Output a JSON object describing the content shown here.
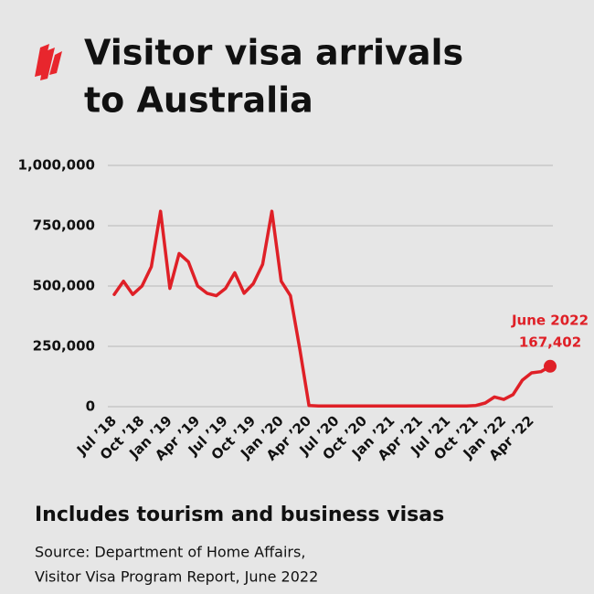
{
  "chart_data": {
    "type": "line",
    "title": [
      "Visitor visa arrivals",
      "to Australia"
    ],
    "subtitle": "Includes tourism and business visas",
    "source": [
      "Source: Department of Home Affairs,",
      "Visitor Visa Program Report, June 2022"
    ],
    "annotation": "June 2022",
    "categories": [
      "Jul ’18",
      null,
      null,
      "Oct ’18",
      null,
      null,
      "Jan ’19",
      null,
      null,
      "Apr ’19",
      null,
      null,
      "Jul ’19",
      null,
      null,
      "Oct ’19",
      null,
      null,
      "Jan ’20",
      null,
      null,
      "Apr ’20",
      null,
      null,
      "Jul ’20",
      null,
      null,
      "Oct ’20",
      null,
      null,
      "Jan ’21",
      null,
      null,
      "Apr ’21",
      null,
      null,
      "Jul ’21",
      null,
      null,
      "Oct ’21",
      null,
      null,
      "Jan ’22",
      null,
      null,
      "Apr ’22",
      null,
      null
    ],
    "series": [
      {
        "name": "Visitor visa arrivals",
        "color": "#df2027",
        "values": [
          465000,
          520000,
          465000,
          500000,
          580000,
          810000,
          490000,
          635000,
          600000,
          500000,
          470000,
          460000,
          490000,
          555000,
          470000,
          510000,
          590000,
          810000,
          520000,
          460000,
          240000,
          5000,
          3000,
          3000,
          3000,
          3000,
          3000,
          3000,
          3000,
          3000,
          3000,
          3000,
          3000,
          3000,
          3000,
          3000,
          3000,
          3000,
          3000,
          5000,
          15000,
          40000,
          30000,
          50000,
          110000,
          140000,
          145000,
          167402
        ],
        "value_labels": [
          null,
          null,
          null,
          null,
          null,
          null,
          null,
          null,
          null,
          null,
          null,
          null,
          null,
          null,
          null,
          null,
          null,
          null,
          null,
          null,
          null,
          null,
          null,
          null,
          null,
          null,
          null,
          null,
          null,
          null,
          null,
          null,
          null,
          null,
          null,
          null,
          null,
          null,
          null,
          null,
          null,
          null,
          null,
          null,
          null,
          null,
          null,
          "167,402"
        ]
      }
    ],
    "ylim": [
      0,
      1000000
    ],
    "yticks": [
      0,
      {
        "value": 250000,
        "label": "250,000"
      },
      {
        "value": 500000,
        "label": "500,000"
      },
      {
        "value": 750000,
        "label": "750,000"
      },
      {
        "value": 1000000,
        "label": "1,000,000"
      }
    ],
    "grid": true
  }
}
